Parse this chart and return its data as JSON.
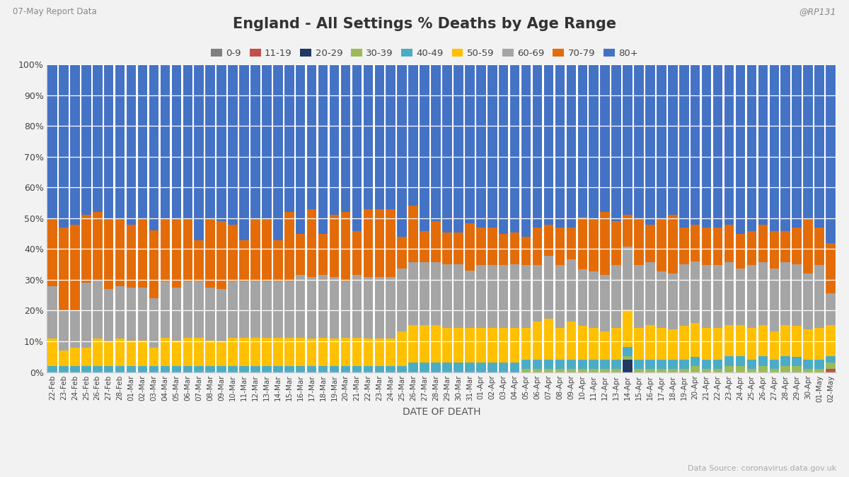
{
  "title": "England - All Settings % Deaths by Age Range",
  "subtitle": "07-May Report Data",
  "source": "Data Source: coronavirus.data.gov.uk",
  "twitter": "@RP131",
  "xlabel": "DATE OF DEATH",
  "background_color": "#f2f2f2",
  "plot_bg_color": "#ffffff",
  "categories": [
    "22-Feb",
    "23-Feb",
    "24-Feb",
    "25-Feb",
    "26-Feb",
    "27-Feb",
    "28-Feb",
    "01-Mar",
    "02-Mar",
    "03-Mar",
    "04-Mar",
    "05-Mar",
    "06-Mar",
    "07-Mar",
    "08-Mar",
    "09-Mar",
    "10-Mar",
    "11-Mar",
    "12-Mar",
    "13-Mar",
    "14-Mar",
    "15-Mar",
    "16-Mar",
    "17-Mar",
    "18-Mar",
    "19-Mar",
    "20-Mar",
    "21-Mar",
    "22-Mar",
    "23-Mar",
    "24-Mar",
    "25-Mar",
    "26-Mar",
    "27-Mar",
    "28-Mar",
    "29-Mar",
    "30-Mar",
    "31-Mar",
    "01-Apr",
    "02-Apr",
    "03-Apr",
    "04-Apr",
    "05-Apr",
    "06-Apr",
    "07-Apr",
    "08-Apr",
    "09-Apr",
    "10-Apr",
    "11-Apr",
    "12-Apr",
    "13-Apr",
    "14-Apr",
    "15-Apr",
    "16-Apr",
    "17-Apr",
    "18-Apr",
    "19-Apr",
    "20-Apr",
    "21-Apr",
    "22-Apr",
    "23-Apr",
    "24-Apr",
    "25-Apr",
    "26-Apr",
    "27-Apr",
    "28-Apr",
    "29-Apr",
    "30-Apr",
    "01-May",
    "02-May"
  ],
  "age_groups": [
    "0-9",
    "11-19",
    "20-29",
    "30-39",
    "40-49",
    "50-59",
    "60-69",
    "70-79",
    "80+"
  ],
  "colors": [
    "#7f7f7f",
    "#c0504d",
    "#1f3864",
    "#9bbb59",
    "#4bacc6",
    "#ffc000",
    "#a5a5a5",
    "#e36c09",
    "#4472c4"
  ],
  "data": {
    "0-9": [
      0,
      0,
      0,
      0,
      0,
      0,
      0,
      0,
      0,
      0,
      0,
      0,
      0,
      0,
      0,
      0,
      0,
      0,
      0,
      0,
      0,
      0,
      0,
      0,
      0,
      0,
      0,
      0,
      0,
      0,
      0,
      0,
      0,
      0,
      0,
      0,
      0,
      0,
      0,
      0,
      0,
      0,
      0,
      0,
      0,
      0,
      0,
      0,
      0,
      0,
      0,
      0,
      0,
      0,
      0,
      0,
      0,
      0,
      0,
      0,
      0,
      0,
      0,
      0,
      0,
      0,
      0,
      0,
      0,
      0
    ],
    "11-19": [
      0,
      0,
      0,
      0,
      0,
      0,
      0,
      0,
      0,
      0,
      0,
      0,
      0,
      0,
      0,
      0,
      0,
      0,
      0,
      0,
      0,
      0,
      0,
      0,
      0,
      0,
      0,
      0,
      0,
      0,
      0,
      0,
      0,
      0,
      0,
      0,
      0,
      0,
      0,
      0,
      0,
      0,
      0,
      0,
      0,
      0,
      0,
      0,
      0,
      0,
      0,
      0,
      0,
      0,
      0,
      0,
      0,
      0,
      0,
      0,
      0,
      0,
      0,
      0,
      0,
      0,
      0,
      0,
      0,
      1
    ],
    "20-29": [
      0,
      0,
      0,
      0,
      0,
      0,
      0,
      0,
      0,
      0,
      0,
      0,
      0,
      0,
      0,
      0,
      0,
      0,
      0,
      0,
      0,
      0,
      0,
      0,
      0,
      0,
      0,
      0,
      0,
      0,
      0,
      0,
      0,
      0,
      0,
      0,
      0,
      0,
      0,
      0,
      0,
      0,
      0,
      0,
      0,
      0,
      0,
      0,
      0,
      0,
      0,
      4,
      0,
      0,
      0,
      0,
      0,
      0,
      0,
      0,
      0,
      0,
      0,
      0,
      0,
      0,
      0,
      0,
      0,
      0
    ],
    "30-39": [
      0,
      0,
      0,
      0,
      0,
      0,
      0,
      0,
      0,
      0,
      0,
      0,
      0,
      0,
      0,
      0,
      0,
      0,
      0,
      0,
      0,
      0,
      0,
      0,
      0,
      0,
      0,
      0,
      0,
      0,
      0,
      0,
      0,
      0,
      0,
      0,
      0,
      0,
      0,
      0,
      0,
      0,
      1,
      1,
      1,
      1,
      1,
      1,
      1,
      1,
      1,
      1,
      1,
      1,
      1,
      1,
      1,
      2,
      1,
      1,
      2,
      2,
      1,
      2,
      1,
      2,
      2,
      1,
      1,
      2
    ],
    "40-49": [
      2,
      2,
      2,
      2,
      2,
      2,
      2,
      2,
      2,
      2,
      2,
      2,
      2,
      2,
      2,
      2,
      2,
      2,
      2,
      2,
      2,
      2,
      2,
      2,
      2,
      2,
      2,
      2,
      2,
      2,
      2,
      2,
      3,
      3,
      3,
      3,
      3,
      3,
      3,
      3,
      3,
      3,
      3,
      3,
      3,
      3,
      3,
      3,
      3,
      3,
      3,
      3,
      3,
      3,
      3,
      3,
      3,
      3,
      3,
      3,
      3,
      3,
      3,
      3,
      3,
      3,
      3,
      3,
      3,
      2
    ],
    "50-59": [
      9,
      5,
      6,
      6,
      9,
      8,
      9,
      8,
      8,
      6,
      9,
      8,
      9,
      9,
      8,
      8,
      9,
      9,
      9,
      9,
      9,
      9,
      9,
      9,
      9,
      9,
      9,
      9,
      9,
      9,
      9,
      11,
      12,
      12,
      12,
      11,
      11,
      11,
      11,
      11,
      11,
      11,
      10,
      12,
      13,
      10,
      12,
      11,
      10,
      9,
      10,
      12,
      10,
      11,
      10,
      10,
      11,
      11,
      10,
      10,
      10,
      10,
      10,
      10,
      9,
      10,
      10,
      10,
      10,
      10
    ],
    "60-69": [
      17,
      13,
      12,
      21,
      19,
      17,
      17,
      17,
      17,
      16,
      18,
      17,
      18,
      18,
      17,
      17,
      18,
      18,
      18,
      18,
      18,
      18,
      20,
      20,
      20,
      20,
      18,
      20,
      20,
      20,
      20,
      20,
      20,
      20,
      20,
      20,
      20,
      18,
      20,
      20,
      20,
      20,
      20,
      18,
      20,
      20,
      20,
      18,
      18,
      18,
      20,
      20,
      20,
      20,
      18,
      18,
      20,
      20,
      20,
      20,
      20,
      18,
      20,
      20,
      20,
      20,
      20,
      18,
      20,
      10
    ],
    "70-79": [
      22,
      27,
      28,
      22,
      22,
      23,
      22,
      20,
      22,
      22,
      20,
      22,
      20,
      13,
      22,
      22,
      18,
      13,
      20,
      20,
      13,
      22,
      13,
      22,
      13,
      20,
      22,
      14,
      22,
      22,
      22,
      10,
      18,
      10,
      13,
      10,
      10,
      15,
      12,
      12,
      10,
      10,
      9,
      12,
      10,
      12,
      10,
      17,
      17,
      20,
      14,
      10,
      15,
      12,
      17,
      19,
      12,
      12,
      12,
      12,
      12,
      11,
      11,
      12,
      12,
      10,
      12,
      18,
      12,
      16
    ],
    "80+": [
      50,
      53,
      52,
      49,
      48,
      50,
      50,
      51,
      49,
      54,
      49,
      49,
      49,
      56,
      49,
      51,
      51,
      56,
      49,
      49,
      56,
      47,
      54,
      47,
      54,
      49,
      47,
      53,
      47,
      47,
      47,
      55,
      45,
      53,
      50,
      53,
      53,
      50,
      52,
      52,
      54,
      53,
      55,
      52,
      51,
      52,
      52,
      49,
      49,
      47,
      50,
      48,
      49,
      51,
      49,
      49,
      53,
      52,
      52,
      52,
      51,
      54,
      53,
      51,
      53,
      53,
      53,
      50,
      52,
      57
    ]
  }
}
